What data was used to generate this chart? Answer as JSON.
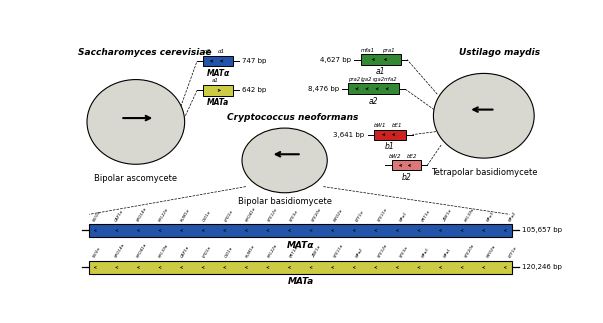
{
  "bg_color": "#ffffff",
  "gray_ellipse": "#d8d8d0",
  "blue_color": "#2255aa",
  "yellow_color": "#cccc44",
  "green_color": "#338833",
  "red_color": "#cc2222",
  "pink_color": "#dd7777",
  "sc_title": "Saccharomyces cerevisiae",
  "sc_subtitle": "Bipolar ascomycete",
  "um_title": "Ustilago maydis",
  "um_subtitle": "Tetrapolar basidiomycete",
  "cn_title": "Cryptococcus neoformans",
  "cn_subtitle": "Bipolar basidiomycete",
  "sc_mata_label": "MATα",
  "sc_mata_bp": "747 bp",
  "sc_mata_genes": [
    "α2",
    "α1"
  ],
  "sc_mata_a_label": "MATa",
  "sc_mata_a_bp": "642 bp",
  "sc_mata_a_genes": [
    "a1"
  ],
  "um_a1_label": "a1",
  "um_a1_bp": "4,627 bp",
  "um_a1_genes": [
    "mfa1",
    "pra1"
  ],
  "um_a2_label": "a2",
  "um_a2_bp": "8,476 bp",
  "um_a2_genes": [
    "pra2",
    "lga2",
    "rga2",
    "mfa2"
  ],
  "um_b1_label": "b1",
  "um_b1_bp": "3,641 bp",
  "um_b1_genes": [
    "bW1",
    "bE1"
  ],
  "um_b2_label": "b2",
  "um_b2_genes": [
    "bW2",
    "bE2"
  ],
  "cn_alpha_label": "MATα",
  "cn_alpha_bp": "105,657 bp",
  "cn_alpha_genes": [
    "SXI1α",
    "CAP1α",
    "SPO14α",
    "RPL22α",
    "RUM1α",
    "CID1α",
    "LPD1α",
    "RPO41α",
    "STE12α",
    "STE3α",
    "STE20α",
    "MYO2α",
    "ETF1α",
    "STE11α",
    "MFα1",
    "PRT1α",
    "ZNF1α",
    "RPL39α",
    "MFα3",
    "MFα2"
  ],
  "cn_a_label": "MATa",
  "cn_a_bp": "120,246 bp",
  "cn_a_genes": [
    "SXI2a",
    "SPO14a",
    "RPO41a",
    "RPL39a",
    "CAP1a",
    "LPD1a",
    "CID1a",
    "RUM1a",
    "RPL22a",
    "PRT1a",
    "ZNF1a",
    "STE11a",
    "MFa2",
    "STE12a",
    "STE3a",
    "MFa3",
    "MFa1",
    "STE20a",
    "MYO2a",
    "ETF1a"
  ]
}
